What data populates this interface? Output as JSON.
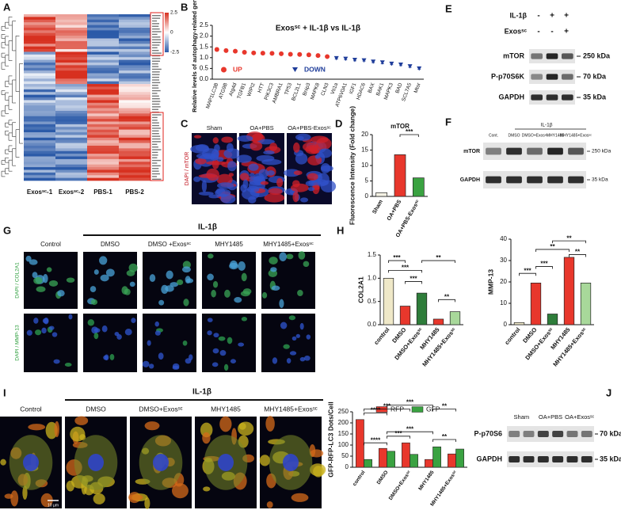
{
  "panel_labels": [
    "A",
    "B",
    "C",
    "D",
    "E",
    "F",
    "G",
    "H",
    "I",
    "J"
  ],
  "heatmap": {
    "columns": [
      "Exosˢᶜ-1",
      "Exosˢᶜ-2",
      "PBS-1",
      "PBS-2"
    ],
    "scale_ticks": [
      2.5,
      0,
      -2.5
    ]
  },
  "panel_C": {
    "columns": [
      "Sham",
      "OA+PBS",
      "OA+PBS-Exosˢᶜ"
    ],
    "stain": "DAPI / mTOR"
  },
  "blot_E": {
    "conditions": [
      {
        "label": "IL-1β",
        "signs": [
          "-",
          "+",
          "+"
        ]
      },
      {
        "label": "Exosˢᶜ",
        "signs": [
          "-",
          "-",
          "+"
        ]
      }
    ],
    "rows": [
      {
        "protein": "mTOR",
        "size": "250 kDa"
      },
      {
        "protein": "P-p70S6K",
        "size": "70 kDa"
      },
      {
        "protein": "GAPDH",
        "size": "35 kDa"
      }
    ]
  },
  "blot_F": {
    "treatment": "IL-1β",
    "lanes": [
      "Cont.",
      "DMSO",
      "DMSO+Exosˢᶜ",
      "MHY1485",
      "MHY1485+Exosˢᶜ"
    ],
    "rows": [
      {
        "protein": "mTOR",
        "size": "250 kDa"
      },
      {
        "protein": "GAPDH",
        "size": "35 kDa"
      }
    ]
  },
  "panel_G": {
    "treatment": "IL-1β",
    "columns": [
      "Control",
      "DMSO",
      "DMSO +Exosˢᶜ",
      "MHY1485",
      "MHY1485+Exosˢᶜ"
    ],
    "stains": [
      "DAPI / COL2A1",
      "DAPI / MMP-13"
    ]
  },
  "panel_I": {
    "treatment": "IL-1β",
    "columns": [
      "Control",
      "DMSO",
      "DMSO+Exosˢᶜ",
      "MHY1485",
      "MHY1485+Exosˢᶜ"
    ],
    "scale_bar": "10 µm"
  },
  "blot_J": {
    "lanes": [
      "Sham",
      "OA+PBS",
      "OA+Exosˢᶜ"
    ],
    "rows": [
      {
        "protein": "P-p70S6",
        "size": "70 kDa"
      },
      {
        "protein": "GAPDH",
        "size": "35 kDa"
      }
    ]
  },
  "chart_data": [
    {
      "type": "dotplot",
      "title": "Exosˢᶜ + IL-1β  vs  IL-1β",
      "y_label": "Relative levels of autophagy-related genes",
      "categories": [
        "MAP1LC3B",
        "ATG9B",
        "Atg4d",
        "TGFB1",
        "WIPI2",
        "HTT",
        "PIK3C3",
        "AMBRA1",
        "TP53",
        "BCL2L1",
        "Bnip3",
        "MAPK8",
        "CLN3",
        "Vti1a",
        "ATP6V0A1",
        "IGF1",
        "HDAC6",
        "BAX",
        "BAK1",
        "MAPK3",
        "BAD",
        "SCL7A5",
        "Mtor"
      ],
      "series": [
        {
          "name": "UP",
          "color": "#e8372c",
          "marker": "circle",
          "values": [
            1.38,
            1.33,
            1.3,
            1.25,
            1.22,
            1.21,
            1.2,
            1.18,
            1.16,
            1.15,
            1.13,
            1.1,
            1.05,
            null,
            null,
            null,
            null,
            null,
            null,
            null,
            null,
            null,
            null
          ],
          "errors": [
            0.08,
            0.06,
            0.05,
            0.05,
            0.05,
            0.04,
            0.04,
            0.05,
            0.06,
            0.05,
            0.07,
            0.06,
            0.05,
            null,
            null,
            null,
            null,
            null,
            null,
            null,
            null,
            null,
            null
          ]
        },
        {
          "name": "DOWN",
          "color": "#1f3d9a",
          "marker": "triangle",
          "values": [
            null,
            null,
            null,
            null,
            null,
            null,
            null,
            null,
            null,
            null,
            null,
            null,
            null,
            0.98,
            0.95,
            0.9,
            0.88,
            0.82,
            0.78,
            0.72,
            0.68,
            0.6,
            0.5
          ],
          "errors": [
            null,
            null,
            null,
            null,
            null,
            null,
            null,
            null,
            null,
            null,
            null,
            null,
            null,
            0.04,
            0.05,
            0.05,
            0.04,
            0.05,
            0.06,
            0.05,
            0.05,
            0.05,
            0.04
          ]
        }
      ],
      "ylim": [
        0,
        2.5
      ],
      "yticks": [
        {
          "value": 0,
          "label": "0.0"
        },
        0.5,
        {
          "value": 1,
          "label": "1.0"
        },
        1.5,
        {
          "value": 2,
          "label": "2.0"
        },
        2.5
      ],
      "legend": "bottom"
    },
    {
      "type": "bar",
      "title": "mTOR",
      "y_label": "Fluorescence Intensity (Fold change)",
      "categories": [
        "Sham",
        "OA+PBS",
        "OA+PBS-Exosˢᶜ"
      ],
      "values": [
        1.2,
        13.5,
        6
      ],
      "colors": [
        "#f4f1e4",
        "#e8372c",
        "#3aa241"
      ],
      "ylim": [
        0,
        20
      ],
      "yticks": [
        0,
        5,
        10,
        15,
        20
      ],
      "annotations": [
        "***"
      ]
    },
    {
      "type": "bar",
      "y_label": "COL2A1",
      "categories": [
        "control",
        "DMSO",
        "DMSO+Exosˢᶜ",
        "MHY1485",
        "MHY1485+Exosˢᶜ"
      ],
      "values": [
        1.0,
        0.4,
        0.68,
        0.12,
        0.28
      ],
      "colors": [
        "#efe8c8",
        "#e8372c",
        "#2e7d3a",
        "#e8372c",
        "#a8d89a"
      ],
      "ylim": [
        0,
        1.5
      ],
      "yticks": [
        {
          "value": 0,
          "label": "0.0"
        },
        0.5,
        {
          "value": 1,
          "label": "1.0"
        },
        1.5
      ],
      "annotations": [
        "***",
        "***",
        "***",
        "**",
        "**"
      ]
    },
    {
      "type": "bar",
      "y_label": "MMP-13",
      "categories": [
        "control",
        "DMSO",
        "DMSO+Exosˢᶜ",
        "MHY1485",
        "MHY1485+Exosˢᶜ"
      ],
      "values": [
        1,
        19.5,
        5,
        31.5,
        19.5
      ],
      "colors": [
        "#efe8c8",
        "#e8372c",
        "#2e7d3a",
        "#e8372c",
        "#a8d89a"
      ],
      "ylim": [
        0,
        40
      ],
      "yticks": [
        0,
        10,
        20,
        30,
        40
      ],
      "annotations": [
        "***",
        "***",
        "**",
        "**",
        "**"
      ]
    },
    {
      "type": "bar",
      "y_label": "GFP-RFP-LC3 Dots/Cell",
      "categories": [
        "control",
        "DMSO",
        "DMSO+Exosˢᶜ",
        "MHY1485",
        "MHY1485+Exosˢᶜ"
      ],
      "series": [
        {
          "name": "RFP",
          "color": "#e8372c",
          "values": [
            215,
            85,
            110,
            35,
            60
          ]
        },
        {
          "name": "GFP",
          "color": "#3aa241",
          "values": [
            35,
            72,
            58,
            92,
            82
          ]
        }
      ],
      "ylim": [
        0,
        250
      ],
      "yticks": [
        0,
        50,
        100,
        150,
        200,
        250
      ],
      "legend": "top",
      "annotations": [
        "****",
        "***",
        "***",
        "**",
        "****",
        "***",
        "***",
        "**"
      ]
    }
  ]
}
